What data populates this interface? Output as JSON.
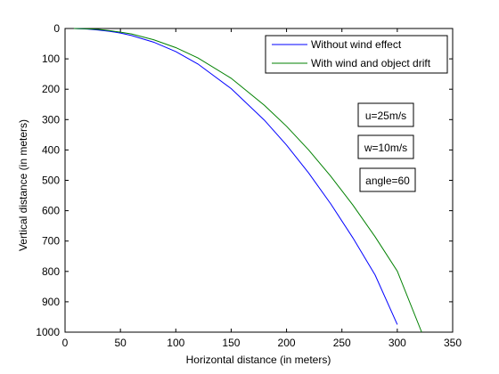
{
  "chart_data": {
    "type": "line",
    "title": "",
    "xlabel": "Horizontal distance (in meters)",
    "ylabel": "Vertical distance (in meters)",
    "xlim": [
      0,
      350
    ],
    "ylim": [
      0,
      1000
    ],
    "y_reversed": true,
    "grid": false,
    "legend_position": "top-right",
    "xticks": [
      0,
      50,
      100,
      150,
      200,
      250,
      300,
      350
    ],
    "yticks": [
      0,
      100,
      200,
      300,
      400,
      500,
      600,
      700,
      800,
      900,
      1000
    ],
    "series": [
      {
        "name": "Without wind effect",
        "color": "#0000ff",
        "x": [
          8,
          20,
          30,
          40,
          50,
          60,
          80,
          100,
          120,
          150,
          180,
          200,
          220,
          240,
          260,
          280,
          300
        ],
        "y": [
          0,
          2,
          5,
          9,
          15,
          23,
          45,
          76,
          117,
          198,
          302,
          384,
          476,
          578,
          690,
          812,
          975
        ]
      },
      {
        "name": "With wind and object drift",
        "color": "#008000",
        "x": [
          8,
          20,
          30,
          40,
          50,
          60,
          80,
          100,
          120,
          150,
          180,
          200,
          220,
          240,
          260,
          280,
          300,
          322
        ],
        "y": [
          0,
          1,
          3,
          7,
          12,
          18,
          37,
          63,
          97,
          164,
          253,
          322,
          400,
          487,
          582,
          686,
          799,
          1000
        ]
      }
    ],
    "annotations": [
      "u=25m/s",
      "w=10m/s",
      "angle=60"
    ]
  }
}
